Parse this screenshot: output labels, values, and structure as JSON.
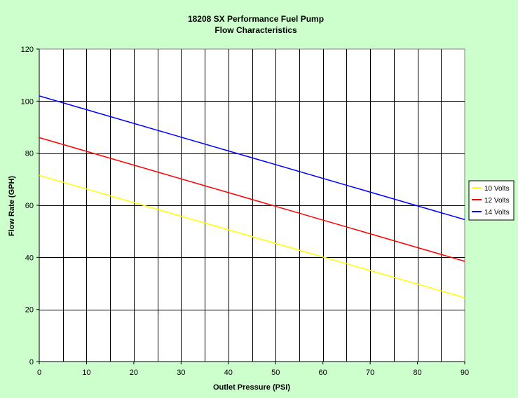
{
  "chart_data": {
    "type": "line",
    "title": "18208 SX Performance Fuel Pump",
    "subtitle": "Flow Characteristics",
    "xlabel": "Outlet Pressure (PSI)",
    "ylabel": "Flow Rate (GPH)",
    "xlim": [
      0,
      90
    ],
    "ylim": [
      0,
      120
    ],
    "xticks": [
      0,
      10,
      20,
      30,
      40,
      50,
      60,
      70,
      80,
      90
    ],
    "yticks": [
      0,
      20,
      40,
      60,
      80,
      100,
      120
    ],
    "x_minor_grid_step": 5,
    "grid": true,
    "legend_position": "right",
    "background_color": "#ccffcc",
    "plot_background": "#ffffff",
    "series": [
      {
        "name": "10 Volts",
        "color": "#ffff00",
        "x": [
          0,
          90
        ],
        "values": [
          71.5,
          24.5
        ]
      },
      {
        "name": "12 Volts",
        "color": "#ff0000",
        "x": [
          0,
          90
        ],
        "values": [
          86,
          38.5
        ]
      },
      {
        "name": "14 Volts",
        "color": "#0000ff",
        "x": [
          0,
          90
        ],
        "values": [
          102,
          54.5
        ]
      }
    ]
  }
}
